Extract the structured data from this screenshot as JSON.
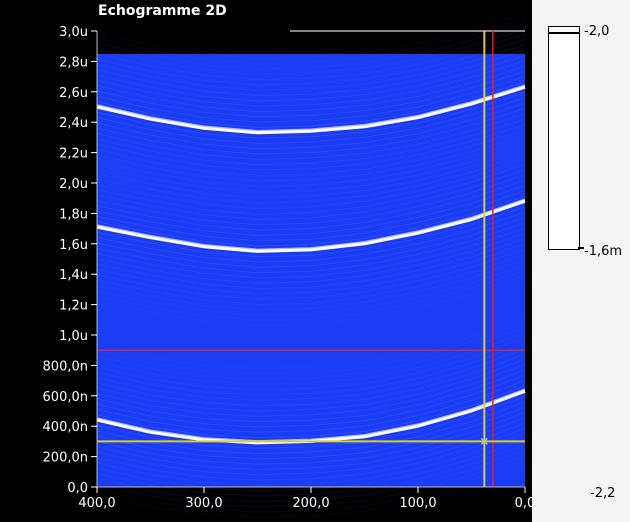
{
  "window": {
    "title": "Echogramme 2D"
  },
  "chart_data": {
    "type": "heatmap",
    "title": "Echogramme 2D",
    "x_axis": {
      "ticks": [
        400,
        300,
        200,
        100,
        0
      ],
      "tick_labels": [
        "400,0",
        "300,0",
        "200,0",
        "100,0",
        "0,0"
      ],
      "range": [
        400,
        0
      ]
    },
    "y_axis": {
      "ticks": [
        0,
        0.2,
        0.4,
        0.6,
        0.8,
        1.0,
        1.2,
        1.4,
        1.6,
        1.8,
        2.0,
        2.2,
        2.4,
        2.6,
        2.8,
        3.0
      ],
      "tick_labels": [
        "0,0",
        "200,0n",
        "400,0n",
        "600,0n",
        "800,0n",
        "1,0u",
        "1,2u",
        "1,4u",
        "1,6u",
        "1,8u",
        "2,0u",
        "2,2u",
        "2,4u",
        "2,6u",
        "2,8u",
        "3,0u"
      ],
      "range": [
        0,
        3.0
      ]
    },
    "background_color": "#1a3cf5",
    "echo_color": "#ffffff",
    "echo_curves": [
      {
        "x": [
          400,
          350,
          300,
          250,
          200,
          150,
          100,
          50,
          0
        ],
        "y": [
          2.5,
          2.42,
          2.36,
          2.33,
          2.34,
          2.37,
          2.43,
          2.52,
          2.63
        ]
      },
      {
        "x": [
          400,
          350,
          300,
          250,
          200,
          150,
          100,
          50,
          0
        ],
        "y": [
          1.71,
          1.64,
          1.58,
          1.55,
          1.56,
          1.6,
          1.67,
          1.76,
          1.88
        ]
      },
      {
        "x": [
          400,
          350,
          300,
          250,
          200,
          150,
          100,
          50,
          0
        ],
        "y": [
          0.44,
          0.36,
          0.31,
          0.29,
          0.3,
          0.33,
          0.4,
          0.5,
          0.63
        ]
      }
    ],
    "cursors": {
      "red": {
        "color": "#e0202a",
        "x": 30,
        "y": 0.9
      },
      "yellow": {
        "color": "#d4cc3c",
        "x": 38,
        "y": 0.3
      }
    },
    "color_scale": {
      "top_label": "-2,0",
      "middle_label": "-1,6m",
      "bottom_label": "-2,2"
    }
  }
}
